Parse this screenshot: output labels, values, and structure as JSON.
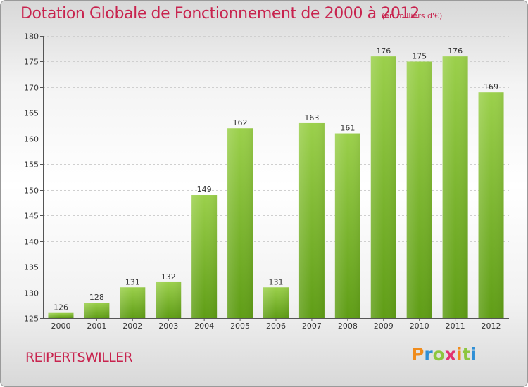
{
  "header": {
    "title": "Dotation Globale de Fonctionnement de 2000 à 2012",
    "unit": "(en milliers d'€)"
  },
  "footer": {
    "commune": "REIPERTSWILLER",
    "logo_text": "Proxiti"
  },
  "colors": {
    "title": "#c8234e",
    "bar_light": "#9bd04b",
    "bar_dark": "#5f9d16",
    "grid": "#cfcfcf"
  },
  "chart_data": {
    "type": "bar",
    "title": "Dotation Globale de Fonctionnement de 2000 à 2012",
    "subtitle": "(en milliers d'€)",
    "xlabel": "",
    "ylabel": "",
    "categories": [
      "2000",
      "2001",
      "2002",
      "2003",
      "2004",
      "2005",
      "2006",
      "2007",
      "2008",
      "2009",
      "2010",
      "2011",
      "2012"
    ],
    "values": [
      126,
      128,
      131,
      132,
      149,
      162,
      131,
      163,
      161,
      176,
      175,
      176,
      169
    ],
    "ylim": [
      125,
      180
    ],
    "yticks": [
      125,
      130,
      135,
      140,
      145,
      150,
      155,
      160,
      165,
      170,
      175,
      180
    ],
    "grid": "horizontal dashed",
    "legend": "none"
  }
}
